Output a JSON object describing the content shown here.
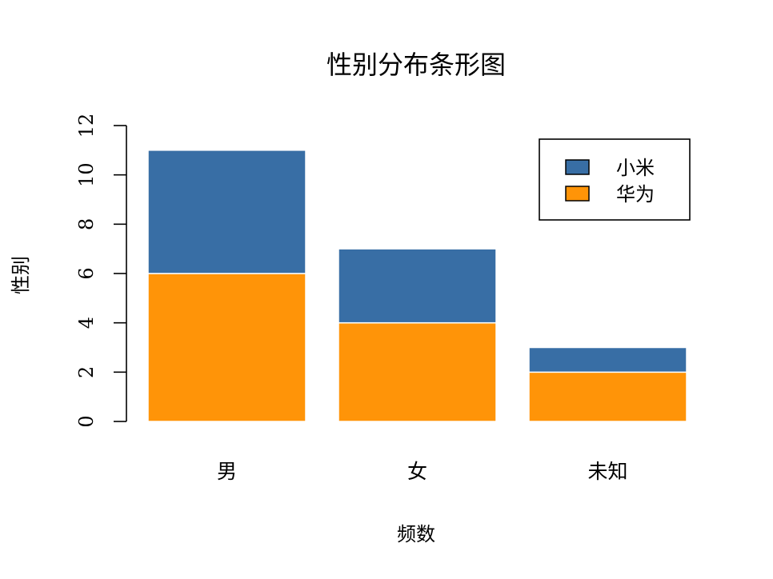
{
  "chart_data": {
    "type": "bar",
    "stacked": true,
    "title": "性别分布条形图",
    "xlabel": "频数",
    "ylabel": "性别",
    "categories": [
      "男",
      "女",
      "未知"
    ],
    "series": [
      {
        "name": "华为",
        "values": [
          6,
          4,
          2
        ],
        "color": "#ff9408"
      },
      {
        "name": "小米",
        "values": [
          5,
          3,
          1
        ],
        "color": "#386ea5"
      }
    ],
    "ylim": [
      0,
      12
    ],
    "yticks": [
      0,
      2,
      4,
      6,
      8,
      10,
      12
    ],
    "legend": {
      "position": "top-right",
      "entries": [
        "小米",
        "华为"
      ]
    },
    "grid": false
  }
}
